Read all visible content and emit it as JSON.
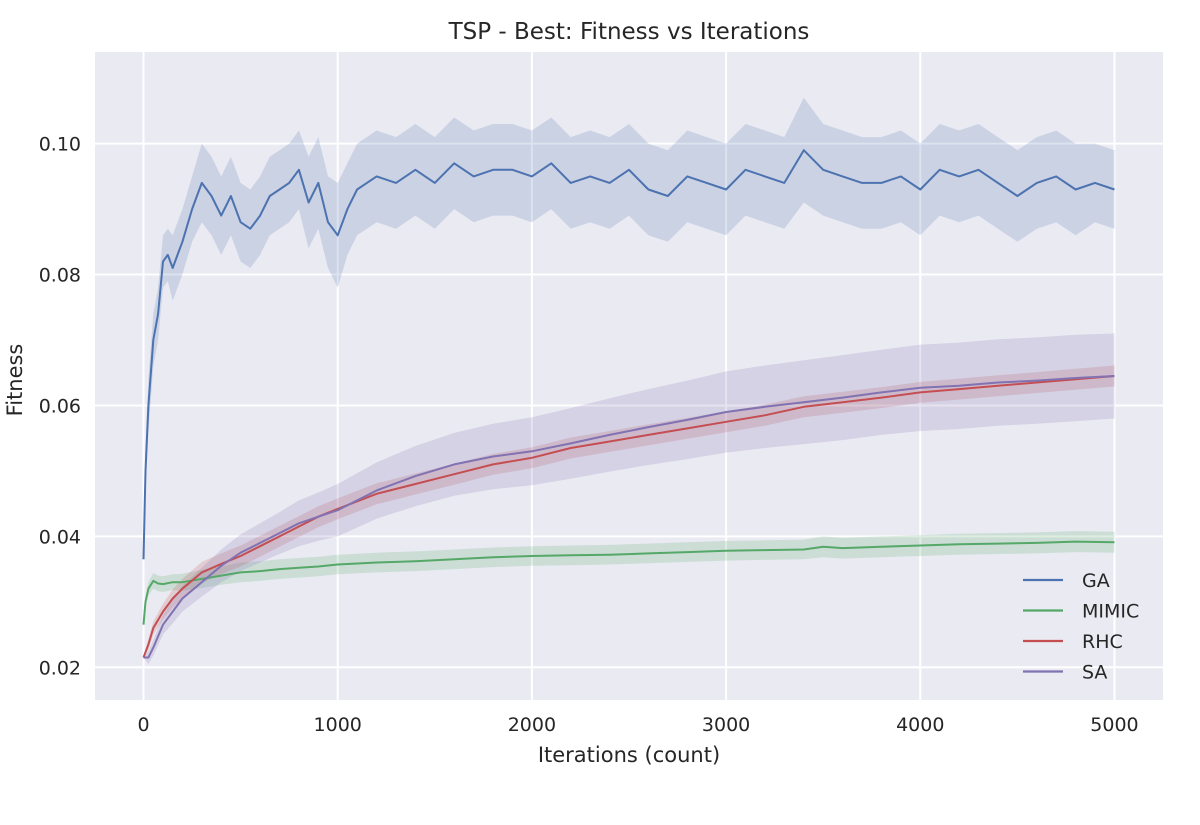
{
  "chart_data": {
    "type": "line",
    "title": "TSP - Best: Fitness vs Iterations",
    "xlabel": "Iterations (count)",
    "ylabel": "Fitness",
    "xlim": [
      -250,
      5250
    ],
    "ylim": [
      0.015,
      0.114
    ],
    "x_ticks": [
      0,
      1000,
      2000,
      3000,
      4000,
      5000
    ],
    "x_tick_labels": [
      "0",
      "1000",
      "2000",
      "3000",
      "4000",
      "5000"
    ],
    "y_ticks": [
      0.02,
      0.04,
      0.06,
      0.08,
      0.1
    ],
    "y_tick_labels": [
      "0.02",
      "0.04",
      "0.06",
      "0.08",
      "0.10"
    ],
    "grid": true,
    "legend_position": "lower-right",
    "background_color": "#eaeaf2",
    "series": [
      {
        "name": "GA",
        "color": "#4c72b0",
        "x": [
          0,
          10,
          25,
          50,
          75,
          100,
          125,
          150,
          175,
          200,
          250,
          300,
          350,
          400,
          450,
          500,
          550,
          600,
          650,
          700,
          750,
          800,
          850,
          900,
          950,
          1000,
          1050,
          1100,
          1150,
          1200,
          1300,
          1400,
          1500,
          1600,
          1700,
          1800,
          1900,
          2000,
          2100,
          2200,
          2300,
          2400,
          2500,
          2600,
          2700,
          2800,
          2900,
          3000,
          3100,
          3200,
          3300,
          3400,
          3500,
          3600,
          3700,
          3800,
          3900,
          4000,
          4100,
          4200,
          4300,
          4400,
          4500,
          4600,
          4700,
          4800,
          4900,
          5000
        ],
        "y": [
          0.0365,
          0.05,
          0.06,
          0.07,
          0.074,
          0.082,
          0.083,
          0.081,
          0.083,
          0.085,
          0.09,
          0.094,
          0.092,
          0.089,
          0.092,
          0.088,
          0.087,
          0.089,
          0.092,
          0.093,
          0.094,
          0.096,
          0.091,
          0.094,
          0.088,
          0.086,
          0.09,
          0.093,
          0.094,
          0.095,
          0.094,
          0.096,
          0.094,
          0.097,
          0.095,
          0.096,
          0.096,
          0.095,
          0.097,
          0.094,
          0.095,
          0.094,
          0.096,
          0.093,
          0.092,
          0.095,
          0.094,
          0.093,
          0.096,
          0.095,
          0.094,
          0.099,
          0.096,
          0.095,
          0.094,
          0.094,
          0.095,
          0.093,
          0.096,
          0.095,
          0.096,
          0.094,
          0.092,
          0.094,
          0.095,
          0.093,
          0.094,
          0.093
        ],
        "ci": [
          0.0,
          0.003,
          0.004,
          0.004,
          0.004,
          0.004,
          0.004,
          0.005,
          0.005,
          0.005,
          0.005,
          0.006,
          0.006,
          0.006,
          0.006,
          0.006,
          0.006,
          0.006,
          0.006,
          0.006,
          0.006,
          0.006,
          0.007,
          0.007,
          0.007,
          0.008,
          0.007,
          0.007,
          0.007,
          0.007,
          0.007,
          0.007,
          0.007,
          0.007,
          0.007,
          0.007,
          0.007,
          0.007,
          0.007,
          0.007,
          0.007,
          0.007,
          0.007,
          0.007,
          0.007,
          0.007,
          0.007,
          0.007,
          0.007,
          0.007,
          0.007,
          0.008,
          0.007,
          0.007,
          0.007,
          0.007,
          0.007,
          0.007,
          0.007,
          0.007,
          0.007,
          0.007,
          0.007,
          0.007,
          0.007,
          0.007,
          0.006,
          0.006
        ]
      },
      {
        "name": "MIMIC",
        "color": "#55a868",
        "x": [
          0,
          10,
          25,
          50,
          75,
          100,
          150,
          200,
          300,
          400,
          500,
          600,
          700,
          800,
          900,
          1000,
          1200,
          1400,
          1600,
          1800,
          2000,
          2200,
          2400,
          2600,
          2800,
          3000,
          3200,
          3400,
          3500,
          3600,
          3800,
          4000,
          4200,
          4400,
          4600,
          4800,
          5000
        ],
        "y": [
          0.0265,
          0.03,
          0.032,
          0.0332,
          0.0328,
          0.0327,
          0.033,
          0.033,
          0.0335,
          0.034,
          0.0345,
          0.0347,
          0.035,
          0.0352,
          0.0354,
          0.0357,
          0.036,
          0.0362,
          0.0365,
          0.0368,
          0.037,
          0.0371,
          0.0372,
          0.0374,
          0.0376,
          0.0378,
          0.0379,
          0.038,
          0.0384,
          0.0382,
          0.0384,
          0.0386,
          0.0388,
          0.0389,
          0.039,
          0.0392,
          0.0391
        ],
        "ci": [
          0.0,
          0.0008,
          0.001,
          0.0012,
          0.0012,
          0.0012,
          0.0012,
          0.0013,
          0.0014,
          0.0014,
          0.0015,
          0.0015,
          0.0015,
          0.0015,
          0.0015,
          0.0015,
          0.0015,
          0.0015,
          0.0015,
          0.0015,
          0.0015,
          0.0015,
          0.0015,
          0.0015,
          0.0015,
          0.0015,
          0.0015,
          0.0015,
          0.0016,
          0.0016,
          0.0016,
          0.0016,
          0.0016,
          0.0016,
          0.0016,
          0.0016,
          0.0016
        ]
      },
      {
        "name": "RHC",
        "color": "#c44e52",
        "x": [
          0,
          25,
          50,
          100,
          150,
          200,
          300,
          400,
          500,
          600,
          700,
          800,
          900,
          1000,
          1200,
          1400,
          1600,
          1800,
          2000,
          2200,
          2400,
          2600,
          2800,
          3000,
          3200,
          3400,
          3600,
          3800,
          4000,
          4200,
          4400,
          4600,
          4800,
          5000
        ],
        "y": [
          0.0215,
          0.0235,
          0.026,
          0.0285,
          0.0305,
          0.032,
          0.0345,
          0.0358,
          0.037,
          0.0385,
          0.04,
          0.0415,
          0.043,
          0.0442,
          0.0465,
          0.048,
          0.0495,
          0.051,
          0.052,
          0.0535,
          0.0545,
          0.0555,
          0.0565,
          0.0575,
          0.0585,
          0.0598,
          0.0605,
          0.0612,
          0.062,
          0.0625,
          0.063,
          0.0635,
          0.064,
          0.0645
        ],
        "ci": [
          0.0,
          0.0008,
          0.001,
          0.0012,
          0.0014,
          0.0015,
          0.0016,
          0.0016,
          0.0016,
          0.0016,
          0.0016,
          0.0016,
          0.0016,
          0.0016,
          0.0016,
          0.0016,
          0.0016,
          0.0016,
          0.0016,
          0.0016,
          0.0016,
          0.0016,
          0.0016,
          0.0016,
          0.0016,
          0.0016,
          0.0016,
          0.0016,
          0.0016,
          0.0016,
          0.0016,
          0.0016,
          0.0016,
          0.0016
        ]
      },
      {
        "name": "SA",
        "color": "#8172b2",
        "x": [
          0,
          25,
          50,
          100,
          150,
          200,
          300,
          400,
          500,
          600,
          700,
          800,
          900,
          1000,
          1200,
          1400,
          1600,
          1800,
          2000,
          2200,
          2400,
          2600,
          2800,
          3000,
          3200,
          3400,
          3600,
          3800,
          4000,
          4200,
          4400,
          4600,
          4800,
          5000
        ],
        "y": [
          0.0215,
          0.0215,
          0.023,
          0.0265,
          0.0285,
          0.0305,
          0.033,
          0.0355,
          0.0375,
          0.039,
          0.0405,
          0.042,
          0.043,
          0.044,
          0.047,
          0.0492,
          0.051,
          0.0522,
          0.053,
          0.0542,
          0.0555,
          0.0567,
          0.0578,
          0.059,
          0.0598,
          0.0605,
          0.0612,
          0.062,
          0.0627,
          0.063,
          0.0635,
          0.0638,
          0.0642,
          0.0645
        ],
        "ci": [
          0.0,
          0.001,
          0.0012,
          0.0015,
          0.0018,
          0.002,
          0.0022,
          0.0025,
          0.0028,
          0.003,
          0.0032,
          0.0035,
          0.0037,
          0.004,
          0.0043,
          0.0046,
          0.0048,
          0.005,
          0.0052,
          0.0054,
          0.0056,
          0.0058,
          0.006,
          0.0062,
          0.0063,
          0.0064,
          0.0065,
          0.0065,
          0.0066,
          0.0066,
          0.0066,
          0.0066,
          0.0066,
          0.0065
        ]
      }
    ]
  }
}
